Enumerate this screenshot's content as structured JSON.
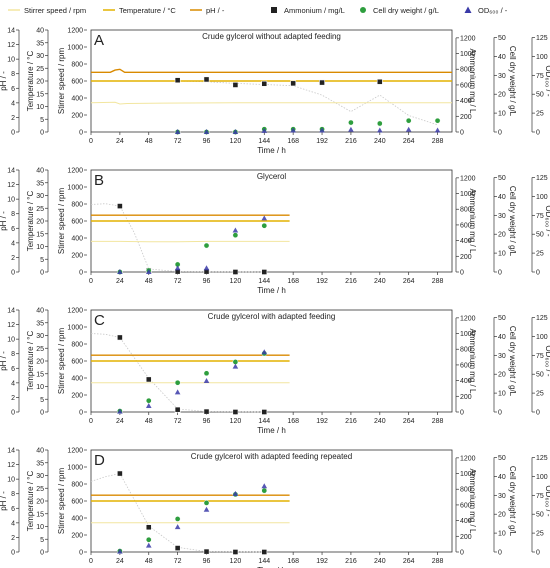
{
  "legend": [
    {
      "key": "stirrer",
      "label": "Stirrer speed / rpm"
    },
    {
      "key": "temperature",
      "label": "Temperature / °C"
    },
    {
      "key": "ph",
      "label": "pH / -"
    },
    {
      "key": "ammonium",
      "label": "Ammonium / mg/L"
    },
    {
      "key": "cdw",
      "label": "Cell dry weight / g/L"
    },
    {
      "key": "od",
      "label": "OD₆₀₀ / -"
    }
  ],
  "colors": {
    "stirrer": "#f2e6a0",
    "temperature": "#e3b200",
    "ph": "#d98a00",
    "ammonium": "#222222",
    "cdw": "#2e9e3e",
    "od": "#3a3aa8",
    "trend": "#c8c8c8"
  },
  "chart_data": [
    {
      "type": "scatter",
      "label": "A",
      "title": "Crude gylcerol without adapted feeding",
      "xlabel": "Time / h",
      "xlim": [
        0,
        300
      ],
      "xticks": [
        0,
        24,
        48,
        72,
        96,
        120,
        144,
        168,
        192,
        216,
        240,
        264,
        288
      ],
      "axes": {
        "ph": {
          "label": "pH / -",
          "lim": [
            0,
            14
          ],
          "ticks": [
            0,
            2,
            4,
            6,
            8,
            10,
            12,
            14
          ]
        },
        "temperature": {
          "label": "Temperature / °C",
          "lim": [
            0,
            40
          ],
          "ticks": [
            0,
            5,
            10,
            15,
            20,
            25,
            30,
            35,
            40
          ]
        },
        "stirrer": {
          "label": "Stirrer speed / rpm",
          "lim": [
            0,
            1200
          ],
          "ticks": [
            0,
            200,
            400,
            600,
            800,
            1000,
            1200
          ]
        },
        "ammonium": {
          "label": "Ammonium mg / L",
          "lim": [
            0,
            1300
          ],
          "ticks": [
            0,
            200,
            400,
            600,
            800,
            1000,
            1200
          ]
        },
        "cdw": {
          "label": "Cell dry weight / g/L",
          "lim": [
            0,
            54
          ],
          "ticks": [
            0,
            10,
            20,
            30,
            40,
            50
          ]
        },
        "od": {
          "label": "OD₆₀₀ / -",
          "lim": [
            0,
            135
          ],
          "ticks": [
            0,
            25,
            50,
            75,
            100,
            125
          ]
        }
      },
      "lines": {
        "stirrer": {
          "x": [
            0,
            20,
            24,
            30,
            60,
            120,
            200,
            300
          ],
          "y": [
            345,
            350,
            330,
            335,
            340,
            345,
            345,
            345
          ]
        },
        "temperature": {
          "x": [
            0,
            300
          ],
          "y": [
            20,
            20
          ]
        },
        "ph": {
          "x": [
            0,
            16,
            20,
            24,
            28,
            300
          ],
          "y": [
            8.2,
            8.2,
            8.5,
            8.6,
            8.2,
            8.2
          ]
        }
      },
      "points": {
        "ammonium": {
          "x": [
            72,
            96,
            120,
            144,
            168,
            192,
            240
          ],
          "y": [
            660,
            670,
            600,
            615,
            620,
            630,
            640
          ]
        },
        "cdw": {
          "x": [
            72,
            96,
            120,
            144,
            168,
            192,
            216,
            240,
            264,
            288
          ],
          "y": [
            0,
            0,
            0,
            1.5,
            1.5,
            1.5,
            5,
            4.5,
            6,
            6
          ]
        },
        "od": {
          "x": [
            72,
            96,
            120,
            144,
            168,
            192,
            216,
            240,
            264,
            288
          ],
          "y": [
            0,
            0,
            0,
            1.5,
            2,
            2,
            3,
            2,
            3,
            2
          ]
        }
      },
      "trend": {
        "ammonium": {
          "x": [
            72,
            96,
            120,
            144,
            168,
            192,
            216,
            240,
            264,
            288
          ],
          "y": [
            650,
            640,
            620,
            605,
            590,
            470,
            260,
            470,
            210,
            90
          ]
        }
      }
    },
    {
      "type": "scatter",
      "label": "B",
      "title": "Glycerol",
      "xlabel": "Time / h",
      "xlim": [
        0,
        300
      ],
      "xticks": [
        0,
        24,
        48,
        72,
        96,
        120,
        144,
        168,
        192,
        216,
        240,
        264,
        288
      ],
      "axes": {
        "ph": {
          "label": "pH / -",
          "lim": [
            0,
            14
          ],
          "ticks": [
            0,
            2,
            4,
            6,
            8,
            10,
            12,
            14
          ]
        },
        "temperature": {
          "label": "Temperature / °C",
          "lim": [
            0,
            40
          ],
          "ticks": [
            0,
            5,
            10,
            15,
            20,
            25,
            30,
            35,
            40
          ]
        },
        "stirrer": {
          "label": "Stirrer speed / rpm",
          "lim": [
            0,
            1200
          ],
          "ticks": [
            0,
            200,
            400,
            600,
            800,
            1000,
            1200
          ]
        },
        "ammonium": {
          "label": "Ammonium mg / L",
          "lim": [
            0,
            1300
          ],
          "ticks": [
            0,
            200,
            400,
            600,
            800,
            1000,
            1200
          ]
        },
        "cdw": {
          "label": "Cell dry weight / g/L",
          "lim": [
            0,
            54
          ],
          "ticks": [
            0,
            10,
            20,
            30,
            40,
            50
          ]
        },
        "od": {
          "label": "OD₆₀₀ / -",
          "lim": [
            0,
            135
          ],
          "ticks": [
            0,
            25,
            50,
            75,
            100,
            125
          ]
        }
      },
      "lines": {
        "stirrer": {
          "x": [
            0,
            24,
            48,
            72,
            96,
            120,
            144,
            165
          ],
          "y": [
            360,
            360,
            355,
            355,
            360,
            360,
            360,
            360
          ]
        },
        "temperature": {
          "x": [
            0,
            165
          ],
          "y": [
            20,
            20
          ]
        },
        "ph": {
          "x": [
            0,
            165
          ],
          "y": [
            7.8,
            7.8
          ]
        }
      },
      "points": {
        "ammonium": {
          "x": [
            24,
            48,
            72,
            96,
            120,
            144
          ],
          "y": [
            840,
            20,
            5,
            5,
            0,
            0
          ]
        },
        "cdw": {
          "x": [
            24,
            48,
            72,
            96,
            120,
            144
          ],
          "y": [
            0,
            0.8,
            4,
            14,
            19.5,
            24.5
          ]
        },
        "od": {
          "x": [
            24,
            48,
            72,
            96,
            120,
            144
          ],
          "y": [
            0,
            0,
            5,
            5,
            55,
            71
          ]
        }
      },
      "trend": {
        "ammonium": {
          "x": [
            0,
            12,
            24,
            36,
            48,
            72,
            96,
            144
          ],
          "y": [
            860,
            870,
            840,
            500,
            40,
            5,
            2,
            0
          ]
        }
      }
    },
    {
      "type": "scatter",
      "label": "C",
      "title": "Crude gylcerol with adapted feeding",
      "xlabel": "Time / h",
      "xlim": [
        0,
        300
      ],
      "xticks": [
        0,
        24,
        48,
        72,
        96,
        120,
        144,
        168,
        192,
        216,
        240,
        264,
        288
      ],
      "axes": {
        "ph": {
          "label": "pH / -",
          "lim": [
            0,
            14
          ],
          "ticks": [
            0,
            2,
            4,
            6,
            8,
            10,
            12,
            14
          ]
        },
        "temperature": {
          "label": "Temperature / °C",
          "lim": [
            0,
            40
          ],
          "ticks": [
            0,
            5,
            10,
            15,
            20,
            25,
            30,
            35,
            40
          ]
        },
        "stirrer": {
          "label": "Stirrer speed / rpm",
          "lim": [
            0,
            1200
          ],
          "ticks": [
            0,
            200,
            400,
            600,
            800,
            1000,
            1200
          ]
        },
        "ammonium": {
          "label": "Ammonium mg / L",
          "lim": [
            0,
            1300
          ],
          "ticks": [
            0,
            200,
            400,
            600,
            800,
            1000,
            1200
          ]
        },
        "cdw": {
          "label": "Cell dry weight / g/L",
          "lim": [
            0,
            54
          ],
          "ticks": [
            0,
            10,
            20,
            30,
            40,
            50
          ]
        },
        "od": {
          "label": "OD₆₀₀ / -",
          "lim": [
            0,
            135
          ],
          "ticks": [
            0,
            25,
            50,
            75,
            100,
            125
          ]
        }
      },
      "lines": {
        "stirrer": {
          "x": [
            0,
            165
          ],
          "y": [
            345,
            345
          ]
        },
        "temperature": {
          "x": [
            0,
            165
          ],
          "y": [
            20,
            20
          ]
        },
        "ph": {
          "x": [
            0,
            165
          ],
          "y": [
            7.8,
            7.8
          ]
        }
      },
      "points": {
        "ammonium": {
          "x": [
            24,
            48,
            72,
            96,
            120,
            144
          ],
          "y": [
            950,
            415,
            30,
            5,
            0,
            0
          ]
        },
        "cdw": {
          "x": [
            24,
            48,
            72,
            96,
            120,
            144
          ],
          "y": [
            0.5,
            6,
            15.5,
            20.5,
            26.5,
            31
          ]
        },
        "od": {
          "x": [
            24,
            48,
            72,
            96,
            120,
            144
          ],
          "y": [
            0.5,
            8,
            26,
            41,
            60,
            79
          ]
        }
      },
      "trend": {
        "ammonium": {
          "x": [
            0,
            12,
            24,
            48,
            72,
            96,
            144
          ],
          "y": [
            1000,
            990,
            950,
            430,
            40,
            5,
            0
          ]
        }
      }
    },
    {
      "type": "scatter",
      "label": "D",
      "title": "Crude gylcerol with adapted feeding repeated",
      "xlabel": "Time / h",
      "xlim": [
        0,
        300
      ],
      "xticks": [
        0,
        24,
        48,
        72,
        96,
        120,
        144,
        168,
        192,
        216,
        240,
        264,
        288
      ],
      "axes": {
        "ph": {
          "label": "pH / -",
          "lim": [
            0,
            14
          ],
          "ticks": [
            0,
            2,
            4,
            6,
            8,
            10,
            12,
            14
          ]
        },
        "temperature": {
          "label": "Temperature / °C",
          "lim": [
            0,
            40
          ],
          "ticks": [
            0,
            5,
            10,
            15,
            20,
            25,
            30,
            35,
            40
          ]
        },
        "stirrer": {
          "label": "Stirrer speed / rpm",
          "lim": [
            0,
            1200
          ],
          "ticks": [
            0,
            200,
            400,
            600,
            800,
            1000,
            1200
          ]
        },
        "ammonium": {
          "label": "Ammonium mg / L",
          "lim": [
            0,
            1300
          ],
          "ticks": [
            0,
            200,
            400,
            600,
            800,
            1000,
            1200
          ]
        },
        "cdw": {
          "label": "Cell dry weight / g/L",
          "lim": [
            0,
            54
          ],
          "ticks": [
            0,
            10,
            20,
            30,
            40,
            50
          ]
        },
        "od": {
          "label": "OD₆₀₀ / -",
          "lim": [
            0,
            135
          ],
          "ticks": [
            0,
            25,
            50,
            75,
            100,
            125
          ]
        }
      },
      "lines": {
        "stirrer": {
          "x": [
            0,
            165
          ],
          "y": [
            345,
            345
          ]
        },
        "temperature": {
          "x": [
            0,
            165
          ],
          "y": [
            20,
            20
          ]
        },
        "ph": {
          "x": [
            0,
            165
          ],
          "y": [
            7.8,
            7.8
          ]
        }
      },
      "points": {
        "ammonium": {
          "x": [
            24,
            48,
            72,
            96,
            120,
            144
          ],
          "y": [
            1000,
            315,
            50,
            5,
            0,
            0
          ]
        },
        "cdw": {
          "x": [
            24,
            48,
            72,
            96,
            120,
            144
          ],
          "y": [
            0.5,
            6.5,
            17.5,
            26,
            30.5,
            32.5
          ]
        },
        "od": {
          "x": [
            24,
            48,
            72,
            96,
            120,
            144
          ],
          "y": [
            0.5,
            8.5,
            33,
            56,
            77,
            87
          ]
        }
      },
      "trend": {
        "ammonium": {
          "x": [
            0,
            12,
            24,
            48,
            72,
            96,
            144
          ],
          "y": [
            900,
            960,
            1000,
            330,
            60,
            5,
            0
          ]
        }
      }
    }
  ]
}
